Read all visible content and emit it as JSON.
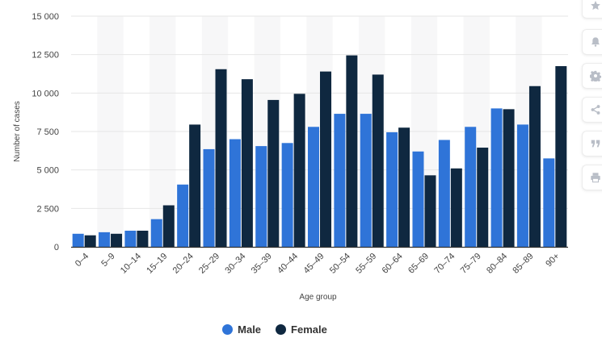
{
  "chart_data": {
    "type": "bar",
    "xlabel": "Age group",
    "ylabel": "Number of cases",
    "ylim": [
      0,
      15000
    ],
    "yticks": [
      0,
      2500,
      5000,
      7500,
      10000,
      12500,
      15000
    ],
    "ytick_labels": [
      "0",
      "2 500",
      "5 000",
      "7 500",
      "10 000",
      "12 500",
      "15 000"
    ],
    "grid": true,
    "legend_position": "bottom-center",
    "categories": [
      "0–4",
      "5–9",
      "10–14",
      "15–19",
      "20–24",
      "25–29",
      "30–34",
      "35–39",
      "40–44",
      "45–49",
      "50–54",
      "55–59",
      "60–64",
      "65–69",
      "70–74",
      "75–79",
      "80–84",
      "85–89",
      "90+"
    ],
    "series": [
      {
        "name": "Male",
        "color": "#2f74d8",
        "values": [
          850,
          950,
          1050,
          1800,
          4050,
          6350,
          7000,
          6550,
          6750,
          7800,
          8650,
          8650,
          7450,
          6200,
          6950,
          7800,
          9000,
          7950,
          5750
        ]
      },
      {
        "name": "Female",
        "color": "#0f2840",
        "values": [
          750,
          850,
          1050,
          2700,
          7950,
          11550,
          10900,
          9550,
          9950,
          11400,
          12450,
          11200,
          7750,
          4650,
          5100,
          6450,
          8950,
          10450,
          11750
        ]
      }
    ]
  },
  "sidebar": {
    "icons": [
      "star-icon",
      "bell-icon",
      "gear-icon",
      "share-icon",
      "quote-icon",
      "print-icon"
    ]
  }
}
